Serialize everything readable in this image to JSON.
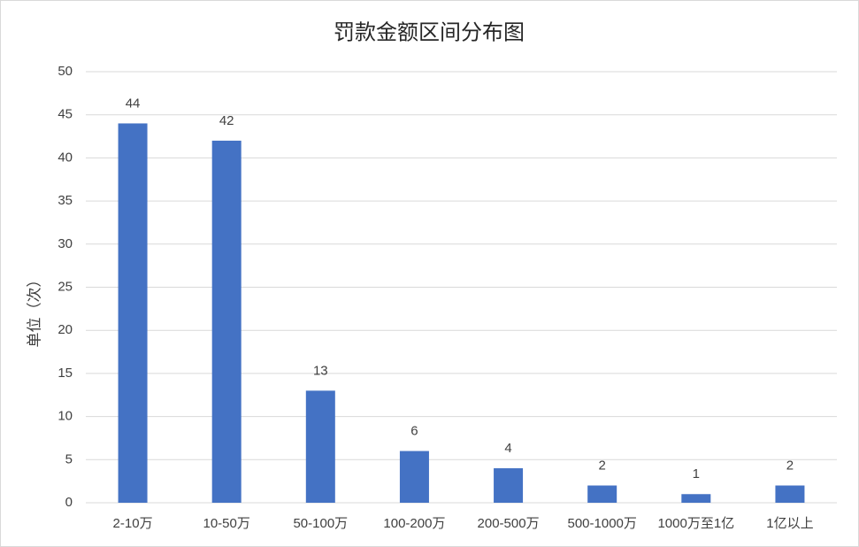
{
  "chart_data": {
    "type": "bar",
    "title": "罚款金额区间分布图",
    "y_label": "单位（次）",
    "categories": [
      "2-10万",
      "10-50万",
      "50-100万",
      "100-200万",
      "200-500万",
      "500-1000万",
      "1000万至1亿",
      "1亿以上"
    ],
    "values": [
      44,
      42,
      13,
      6,
      4,
      2,
      1,
      2
    ],
    "color": "#4472c4",
    "ylim": [
      0,
      50
    ],
    "yticks": [
      0,
      5,
      10,
      15,
      20,
      25,
      30,
      35,
      40,
      45,
      50
    ],
    "grid": true
  }
}
